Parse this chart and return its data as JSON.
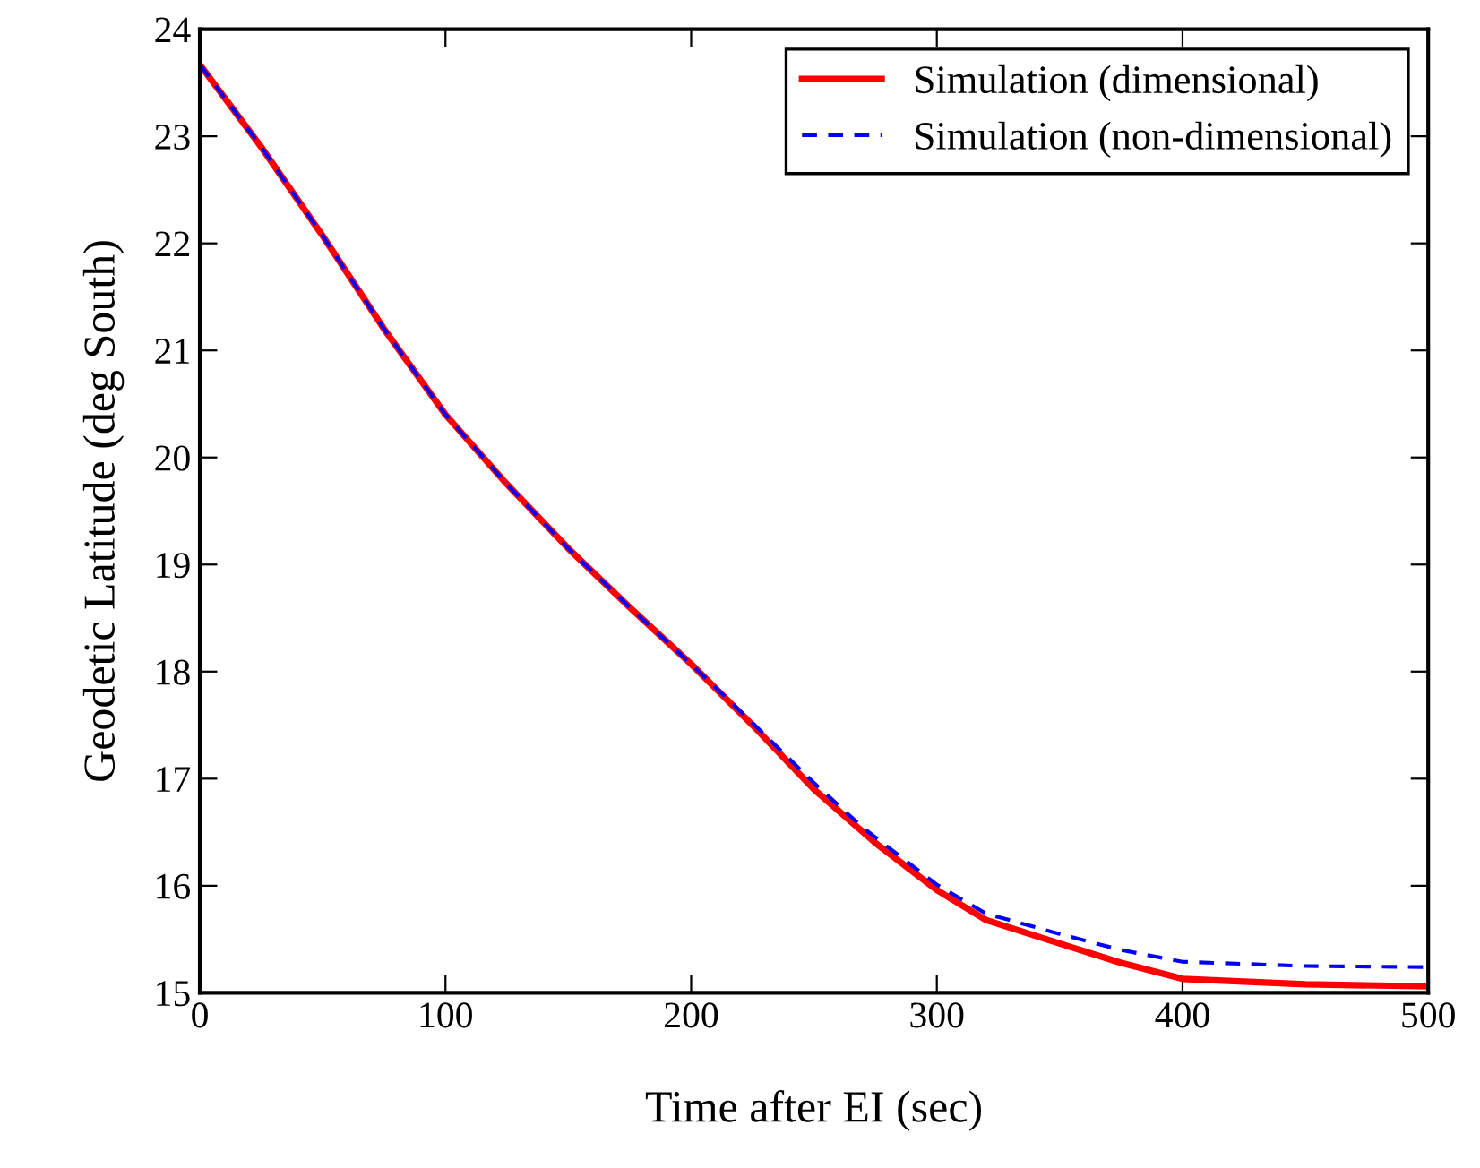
{
  "chart_data": {
    "type": "line",
    "xlabel": "Time after EI (sec)",
    "ylabel": "Geodetic Latitude (deg South)",
    "xlim": [
      0,
      500
    ],
    "ylim": [
      15,
      24
    ],
    "xticks": [
      0,
      100,
      200,
      300,
      400,
      500
    ],
    "yticks": [
      15,
      16,
      17,
      18,
      19,
      20,
      21,
      22,
      23,
      24
    ],
    "grid": false,
    "legend": "top right",
    "series": [
      {
        "name": "Simulation (dimensional)",
        "color": "#ff0000",
        "line_style": "solid",
        "x": [
          0,
          25,
          50,
          75,
          100,
          125,
          150,
          175,
          200,
          225,
          250,
          275,
          300,
          320,
          350,
          375,
          400,
          450,
          500
        ],
        "values": [
          23.67,
          22.9,
          22.07,
          21.2,
          20.4,
          19.75,
          19.15,
          18.6,
          18.07,
          17.5,
          16.9,
          16.4,
          15.96,
          15.68,
          15.46,
          15.28,
          15.13,
          15.08,
          15.06
        ]
      },
      {
        "name": "Simulation (non-dimensional)",
        "color": "#0000ff",
        "line_style": "dashed",
        "x": [
          0,
          25,
          50,
          75,
          100,
          125,
          150,
          175,
          200,
          225,
          250,
          270,
          300,
          320,
          350,
          375,
          400,
          450,
          500
        ],
        "values": [
          23.67,
          22.9,
          22.07,
          21.2,
          20.4,
          19.75,
          19.15,
          18.6,
          18.07,
          17.52,
          16.96,
          16.54,
          16.01,
          15.74,
          15.55,
          15.4,
          15.29,
          15.25,
          15.24
        ]
      }
    ]
  }
}
